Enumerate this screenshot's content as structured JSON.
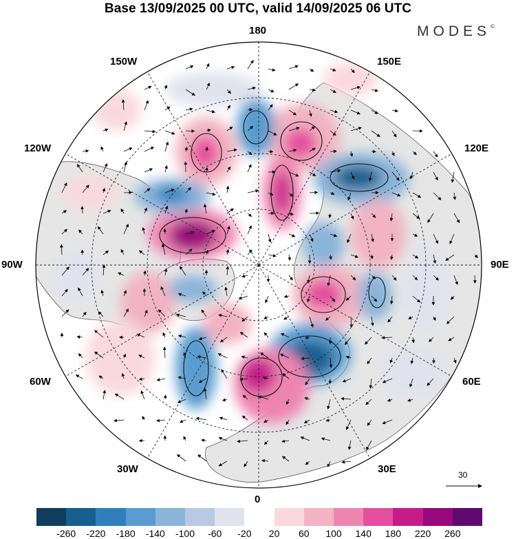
{
  "title": "Base 13/09/2025 00 UTC, valid 14/09/2025 06 UTC",
  "brand": "MODES",
  "brand_mark": "©",
  "longitude_labels": {
    "top": "180",
    "bottom": "0",
    "left": "90W",
    "right": "90E",
    "w150": "150W",
    "e150": "150E",
    "w120": "120W",
    "e120": "120E",
    "w60": "60W",
    "e60": "60E",
    "w30": "30W",
    "e30": "30E"
  },
  "vector_scale": {
    "label": "30"
  },
  "colorbar": {
    "colors": [
      "#0f3d5c",
      "#175f8e",
      "#2f7fbf",
      "#5a9ccf",
      "#8ab4d9",
      "#b9c9e2",
      "#e0e2ef",
      "#ffffff",
      "#f9d9dd",
      "#f2b3c2",
      "#ee85b1",
      "#e4509e",
      "#c51c8a",
      "#98087a",
      "#5e0a70"
    ],
    "tick_labels": [
      "-260",
      "-220",
      "-180",
      "-140",
      "-100",
      "-60",
      "-20",
      "20",
      "60",
      "100",
      "140",
      "180",
      "220",
      "260"
    ]
  },
  "palette": {
    "land": "#e8e8e8",
    "ocean": "#ffffff"
  }
}
